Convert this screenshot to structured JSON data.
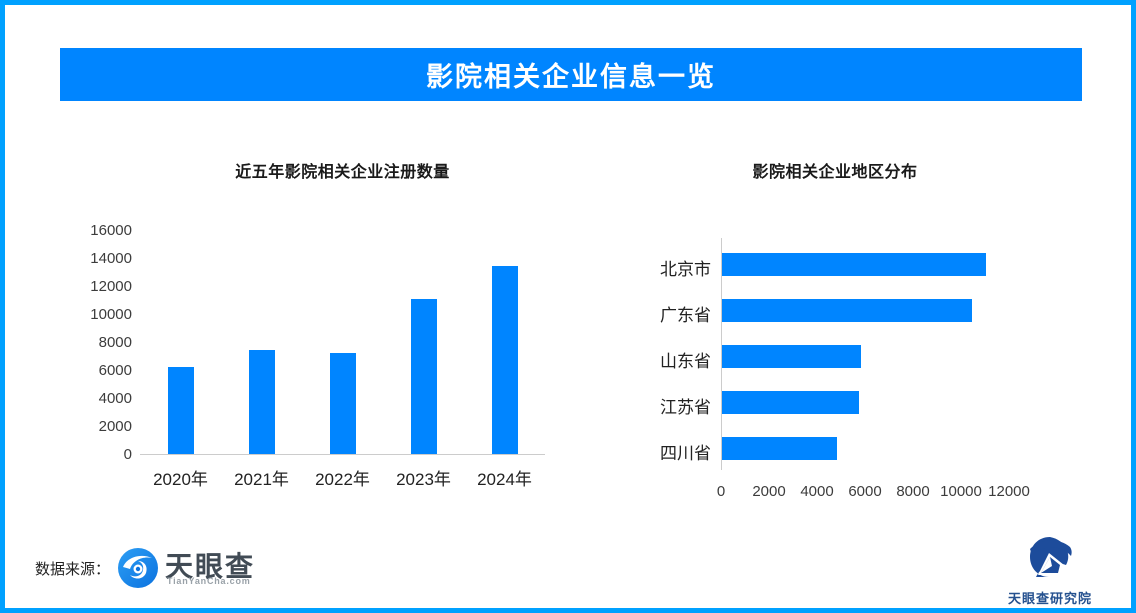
{
  "page": {
    "border_color": "#00A1FF",
    "background": "#ffffff"
  },
  "header": {
    "title": "影院相关企业信息一览",
    "bg_color": "#0085FF",
    "text_color": "#ffffff"
  },
  "chart_data": [
    {
      "type": "bar",
      "orientation": "vertical",
      "title": "近五年影院相关企业注册数量",
      "categories": [
        "2020年",
        "2021年",
        "2022年",
        "2023年",
        "2024年"
      ],
      "values": [
        6200,
        7400,
        7200,
        11100,
        13400
      ],
      "ylim": [
        0,
        16000
      ],
      "yticks": [
        0,
        2000,
        4000,
        6000,
        8000,
        10000,
        12000,
        14000,
        16000
      ],
      "bar_color": "#0085FF",
      "grid": false,
      "legend": "none"
    },
    {
      "type": "bar",
      "orientation": "horizontal",
      "title": "影院相关企业地区分布",
      "categories": [
        "北京市",
        "广东省",
        "山东省",
        "江苏省",
        "四川省"
      ],
      "values": [
        11000,
        10400,
        5800,
        5700,
        4800
      ],
      "xlim": [
        0,
        12000
      ],
      "xticks": [
        0,
        2000,
        4000,
        6000,
        8000,
        10000,
        12000
      ],
      "bar_color": "#0085FF",
      "grid": false,
      "legend": "none"
    }
  ],
  "footer": {
    "source_label": "数据来源：",
    "source_logo_icon": "tianyancha-swirl-icon",
    "source_logo_name": "天眼查",
    "source_logo_domain": "TianYanCha.com",
    "institute_logo_icon": "tianyancha-research-eye-icon",
    "institute_name": "天眼查研究院"
  }
}
